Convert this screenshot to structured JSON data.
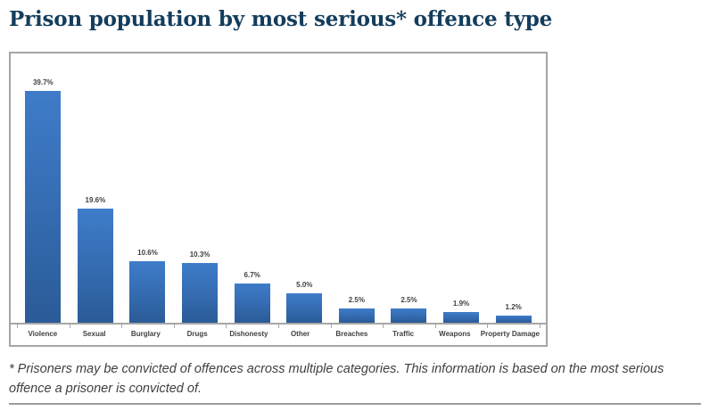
{
  "page": {
    "title": "Prison population by most serious* offence type",
    "footnote": "* Prisoners may be convicted of offences across multiple categories. This information is based on the most serious offence a prisoner is convicted of."
  },
  "colors": {
    "title_text": "#143D5C",
    "bar_gradient_top": "#3E7CC9",
    "bar_gradient_bottom": "#2B5B97",
    "chart_border": "#A6A6A6",
    "axis_line": "#A6A6A6",
    "data_label_text": "#404040",
    "footnote_text": "#3F3F3F",
    "divider": "#9B9B9B"
  },
  "chart_data": {
    "type": "bar",
    "title": "Prison population by most serious* offence type",
    "categories": [
      "Violence",
      "Sexual",
      "Burglary",
      "Drugs",
      "Dishonesty",
      "Other",
      "Breaches",
      "Traffic",
      "Weapons",
      "Property Damage"
    ],
    "values": [
      39.7,
      19.6,
      10.6,
      10.3,
      6.7,
      5.0,
      2.5,
      2.5,
      1.9,
      1.2
    ],
    "value_labels": [
      "39.7%",
      "19.6%",
      "10.6%",
      "10.3%",
      "6.7%",
      "5.0%",
      "2.5%",
      "2.5%",
      "1.9%",
      "1.2%"
    ],
    "xlabel": "",
    "ylabel": "",
    "ylim": [
      0,
      42
    ],
    "grid": false,
    "legend": false,
    "data_labels": true,
    "bar_color": "blue-gradient"
  }
}
